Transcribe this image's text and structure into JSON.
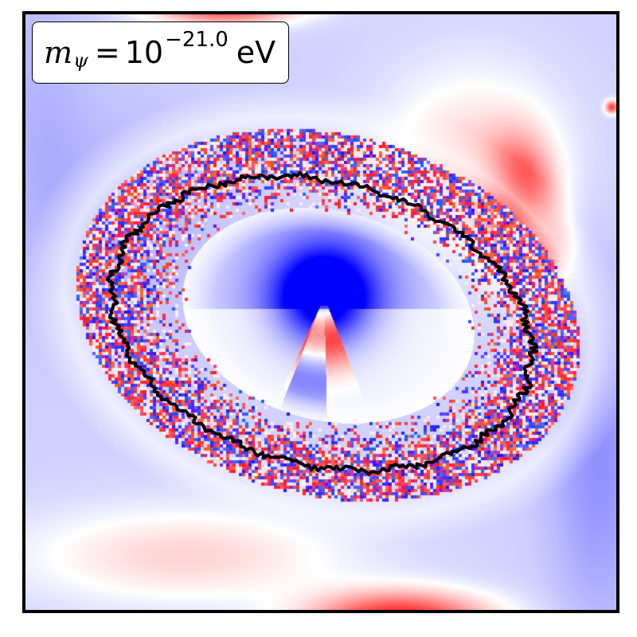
{
  "label": {
    "symbol": "m",
    "subscript": "ψ",
    "equals": "=",
    "base": "10",
    "exponent": "−21.0",
    "unit": "eV"
  },
  "colors": {
    "positive": "#ff0000",
    "negative": "#0000ff",
    "neutral": "#ffffff",
    "contour": "#000000",
    "frame": "#000000"
  },
  "colormap": "bwr"
}
